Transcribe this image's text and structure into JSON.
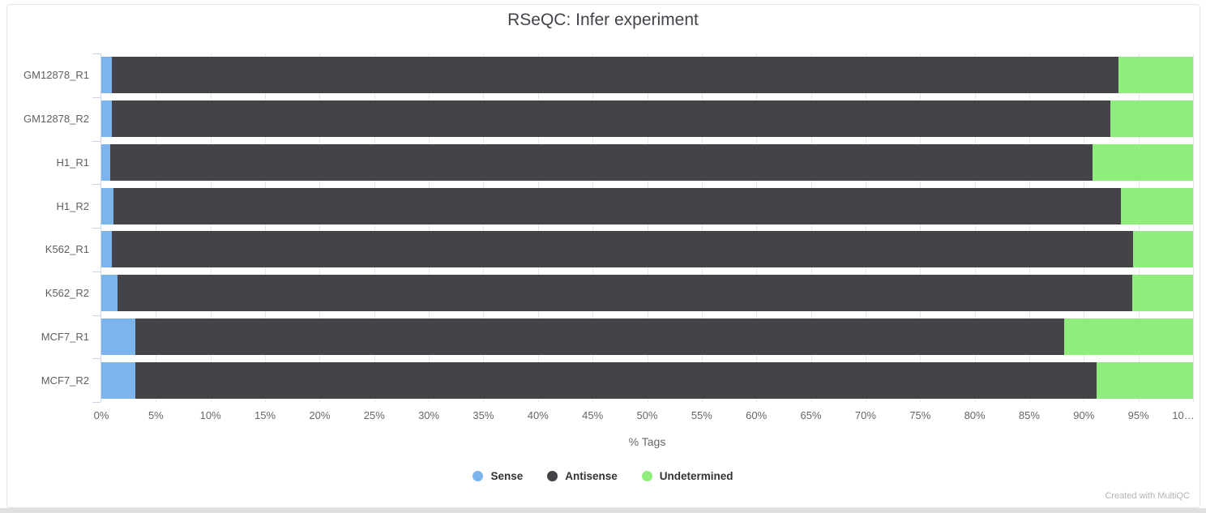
{
  "header": {
    "title": "RSeQC: Infer experiment"
  },
  "footer": {
    "credit": "Created with MultiQC"
  },
  "chart_data": {
    "type": "bar",
    "orientation": "horizontal-stacked",
    "title": "RSeQC: Infer experiment",
    "xlabel": "% Tags",
    "xlim": [
      0,
      100
    ],
    "grid": true,
    "legend_position": "bottom",
    "x_tick_values": [
      0,
      5,
      10,
      15,
      20,
      25,
      30,
      35,
      40,
      45,
      50,
      55,
      60,
      65,
      70,
      75,
      80,
      85,
      90,
      95,
      100
    ],
    "x_tick_labels": [
      "0%",
      "5%",
      "10%",
      "15%",
      "20%",
      "25%",
      "30%",
      "35%",
      "40%",
      "45%",
      "50%",
      "55%",
      "60%",
      "65%",
      "70%",
      "75%",
      "80%",
      "85%",
      "90%",
      "95%",
      "10…"
    ],
    "categories": [
      "GM12878_R1",
      "GM12878_R2",
      "H1_R1",
      "H1_R2",
      "K562_R1",
      "K562_R2",
      "MCF7_R1",
      "MCF7_R2"
    ],
    "series": [
      {
        "name": "Sense",
        "color": "#7cb5ec",
        "values": [
          1.0,
          1.0,
          0.8,
          1.1,
          1.0,
          1.5,
          3.1,
          3.1
        ]
      },
      {
        "name": "Antisense",
        "color": "#434348",
        "values": [
          92.2,
          91.4,
          90.0,
          92.3,
          93.5,
          92.9,
          85.1,
          88.1
        ]
      },
      {
        "name": "Undetermined",
        "color": "#90ed7d",
        "values": [
          6.8,
          7.6,
          9.2,
          6.6,
          5.5,
          5.6,
          11.8,
          8.8
        ]
      }
    ]
  },
  "colors": {
    "sense": "#7cb5ec",
    "antisense": "#434348",
    "undetermined": "#90ed7d",
    "gridline": "#e7e7e7",
    "axis": "#ccd6eb"
  }
}
